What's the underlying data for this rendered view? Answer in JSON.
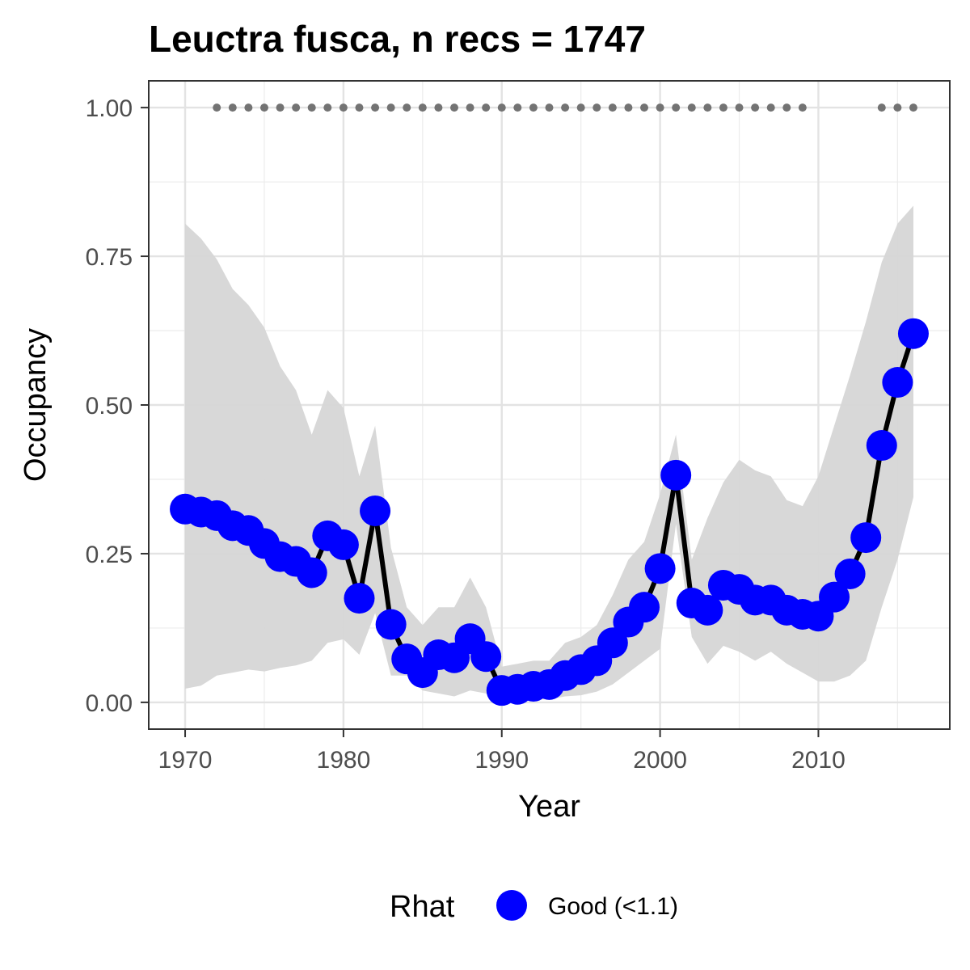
{
  "chart_data": {
    "type": "line",
    "title": "Leuctra fusca, n recs = 1747",
    "xlabel": "Year",
    "ylabel": "Occupancy",
    "xlim": [
      1967.7,
      2018.3
    ],
    "ylim": [
      -0.045,
      1.045
    ],
    "x_ticks": [
      1970,
      1980,
      1990,
      2000,
      2010
    ],
    "y_ticks": [
      0.0,
      0.25,
      0.5,
      0.75,
      1.0
    ],
    "y_tick_labels": [
      "0.00",
      "0.25",
      "0.50",
      "0.75",
      "1.00"
    ],
    "grid": true,
    "legend_position": "bottom",
    "legend_title": "Rhat",
    "series": [
      {
        "name": "Good (<1.1)",
        "color": "#0000ff",
        "line_color": "#000000",
        "ribbon_color": "#d6d6d6",
        "x": [
          1970,
          1971,
          1972,
          1973,
          1974,
          1975,
          1976,
          1977,
          1978,
          1979,
          1980,
          1981,
          1982,
          1983,
          1984,
          1985,
          1986,
          1987,
          1988,
          1989,
          1990,
          1991,
          1992,
          1993,
          1994,
          1995,
          1996,
          1997,
          1998,
          1999,
          2000,
          2001,
          2002,
          2003,
          2004,
          2005,
          2006,
          2007,
          2008,
          2009,
          2010,
          2011,
          2012,
          2013,
          2014,
          2015,
          2016
        ],
        "y": [
          0.325,
          0.32,
          0.314,
          0.297,
          0.289,
          0.267,
          0.245,
          0.237,
          0.218,
          0.28,
          0.265,
          0.175,
          0.322,
          0.131,
          0.073,
          0.05,
          0.08,
          0.075,
          0.107,
          0.077,
          0.02,
          0.022,
          0.027,
          0.03,
          0.045,
          0.055,
          0.07,
          0.1,
          0.135,
          0.16,
          0.225,
          0.382,
          0.167,
          0.155,
          0.197,
          0.19,
          0.172,
          0.172,
          0.155,
          0.148,
          0.145,
          0.177,
          0.216,
          0.277,
          0.432,
          0.538,
          0.62
        ],
        "lower": [
          0.023,
          0.028,
          0.045,
          0.05,
          0.055,
          0.052,
          0.058,
          0.062,
          0.07,
          0.1,
          0.106,
          0.08,
          0.15,
          0.045,
          0.045,
          0.02,
          0.015,
          0.01,
          0.02,
          0.015,
          0.005,
          0.005,
          0.005,
          0.005,
          0.01,
          0.012,
          0.018,
          0.03,
          0.05,
          0.07,
          0.09,
          0.3,
          0.11,
          0.065,
          0.095,
          0.085,
          0.07,
          0.085,
          0.065,
          0.05,
          0.035,
          0.035,
          0.045,
          0.07,
          0.16,
          0.24,
          0.345
        ],
        "upper": [
          0.805,
          0.78,
          0.745,
          0.695,
          0.668,
          0.63,
          0.565,
          0.525,
          0.45,
          0.525,
          0.495,
          0.38,
          0.465,
          0.26,
          0.16,
          0.13,
          0.16,
          0.16,
          0.21,
          0.16,
          0.06,
          0.065,
          0.07,
          0.07,
          0.1,
          0.11,
          0.13,
          0.18,
          0.24,
          0.27,
          0.35,
          0.45,
          0.24,
          0.31,
          0.37,
          0.408,
          0.39,
          0.38,
          0.34,
          0.33,
          0.38,
          0.465,
          0.55,
          0.64,
          0.74,
          0.805,
          0.835
        ]
      }
    ],
    "rug": {
      "y": 1.0,
      "color": "#737373",
      "x": [
        1972,
        1973,
        1974,
        1975,
        1976,
        1977,
        1978,
        1979,
        1980,
        1981,
        1982,
        1983,
        1984,
        1985,
        1986,
        1987,
        1988,
        1989,
        1990,
        1991,
        1992,
        1993,
        1994,
        1995,
        1996,
        1997,
        1998,
        1999,
        2000,
        2001,
        2002,
        2003,
        2004,
        2005,
        2006,
        2007,
        2008,
        2009,
        2014,
        2015,
        2016
      ]
    }
  }
}
